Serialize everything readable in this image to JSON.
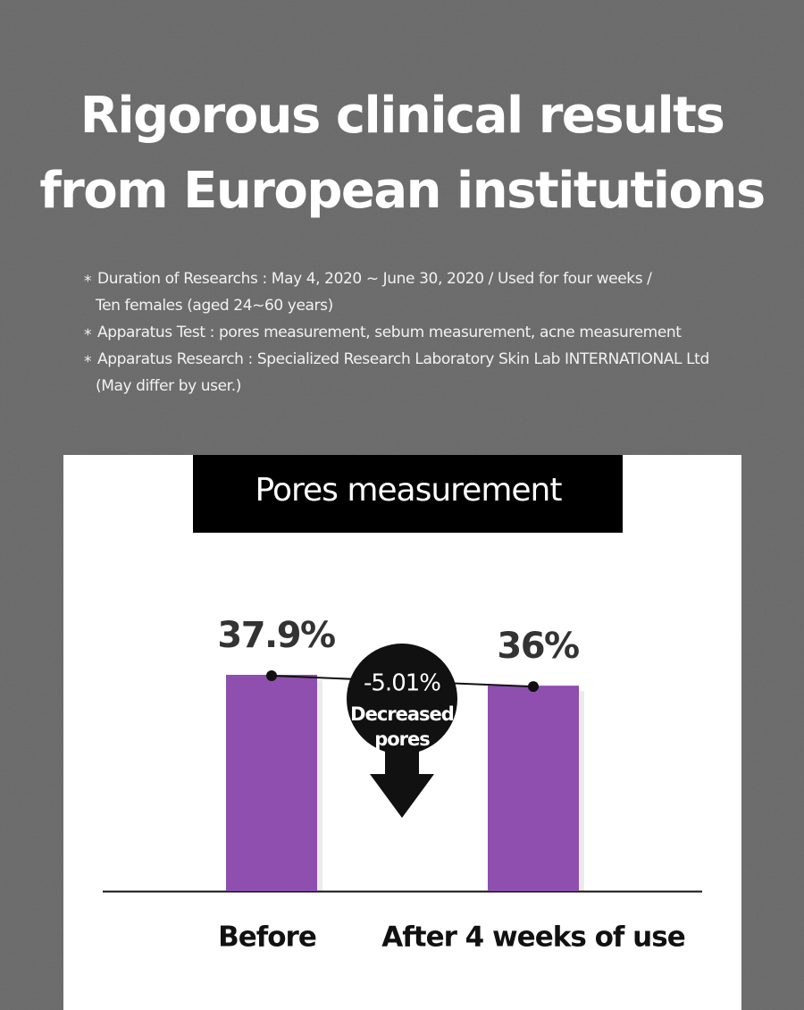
{
  "header": {
    "title": [
      "Rigorous clinical results",
      "from European institutions"
    ],
    "notes": [
      [
        "Duration of Researchs : May 4, 2020 ~ June 30, 2020 / Used for four weeks /",
        "Ten females (aged 24~60 years)"
      ],
      [
        "Apparatus Test : pores measurement, sebum measurement, acne measurement"
      ],
      [
        "Apparatus Research : Specialized Research Laboratory Skin Lab INTERNATIONAL Ltd",
        "(May differ by user.)"
      ]
    ]
  },
  "chart_data": {
    "type": "bar",
    "title": "Pores measurement",
    "categories": [
      "Before",
      "After 4 weeks of use"
    ],
    "values": [
      37.9,
      36
    ],
    "value_labels": [
      "37.9%",
      "36%"
    ],
    "color": "#8e4fae",
    "annotation": {
      "text": "-5.01%",
      "lines": [
        "Decreased",
        "pores"
      ]
    }
  }
}
